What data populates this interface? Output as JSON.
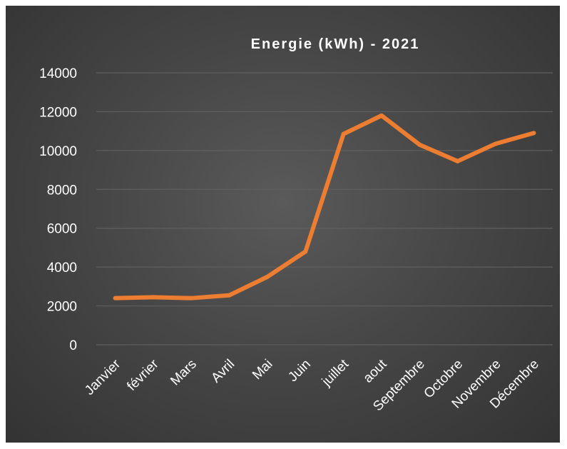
{
  "chart_data": {
    "type": "line",
    "title": "Energie (kWh) - 2021",
    "xlabel": "",
    "ylabel": "",
    "categories": [
      "Janvier",
      "février",
      "Mars",
      "Avril",
      "Mai",
      "Juin",
      "juillet",
      "aout",
      "Septembre",
      "Octobre",
      "Novembre",
      "Décembre"
    ],
    "yticks": [
      "0",
      "2000",
      "4000",
      "6000",
      "8000",
      "10000",
      "12000",
      "14000"
    ],
    "ylim": [
      0,
      14000
    ],
    "grid": true,
    "legend": "none",
    "series": [
      {
        "name": "",
        "color": "#ED7D31",
        "values": [
          2400,
          2450,
          2400,
          2550,
          3500,
          4800,
          10850,
          11800,
          10300,
          9450,
          10350,
          10900
        ]
      }
    ]
  }
}
